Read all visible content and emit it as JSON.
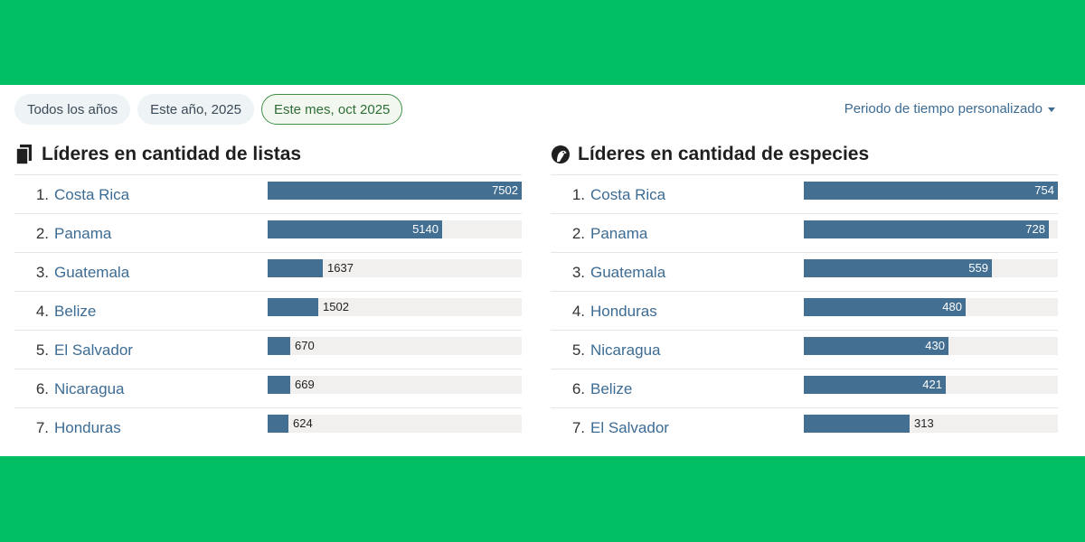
{
  "filters": {
    "all_years": "Todos los años",
    "this_year": "Este año, 2025",
    "this_month": "Este mes, oct 2025",
    "custom_period": "Periodo de tiempo personalizado"
  },
  "lists_section": {
    "title": "Líderes en cantidad de listas",
    "icon": "checklist-icon",
    "max": 7502,
    "rows": [
      {
        "rank": "1.",
        "name": "Costa Rica",
        "value": 7502
      },
      {
        "rank": "2.",
        "name": "Panama",
        "value": 5140
      },
      {
        "rank": "3.",
        "name": "Guatemala",
        "value": 1637
      },
      {
        "rank": "4.",
        "name": "Belize",
        "value": 1502
      },
      {
        "rank": "5.",
        "name": "El Salvador",
        "value": 670
      },
      {
        "rank": "6.",
        "name": "Nicaragua",
        "value": 669
      },
      {
        "rank": "7.",
        "name": "Honduras",
        "value": 624
      }
    ]
  },
  "species_section": {
    "title": "Líderes en cantidad de especies",
    "icon": "bird-icon",
    "max": 754,
    "rows": [
      {
        "rank": "1.",
        "name": "Costa Rica",
        "value": 754
      },
      {
        "rank": "2.",
        "name": "Panama",
        "value": 728
      },
      {
        "rank": "3.",
        "name": "Guatemala",
        "value": 559
      },
      {
        "rank": "4.",
        "name": "Honduras",
        "value": 480
      },
      {
        "rank": "5.",
        "name": "Nicaragua",
        "value": 430
      },
      {
        "rank": "6.",
        "name": "Belize",
        "value": 421
      },
      {
        "rank": "7.",
        "name": "El Salvador",
        "value": 313
      }
    ]
  },
  "colors": {
    "brand_green": "#00bf63",
    "bar": "#436f93",
    "track": "#f1f0ef",
    "link": "#3c6b93"
  }
}
